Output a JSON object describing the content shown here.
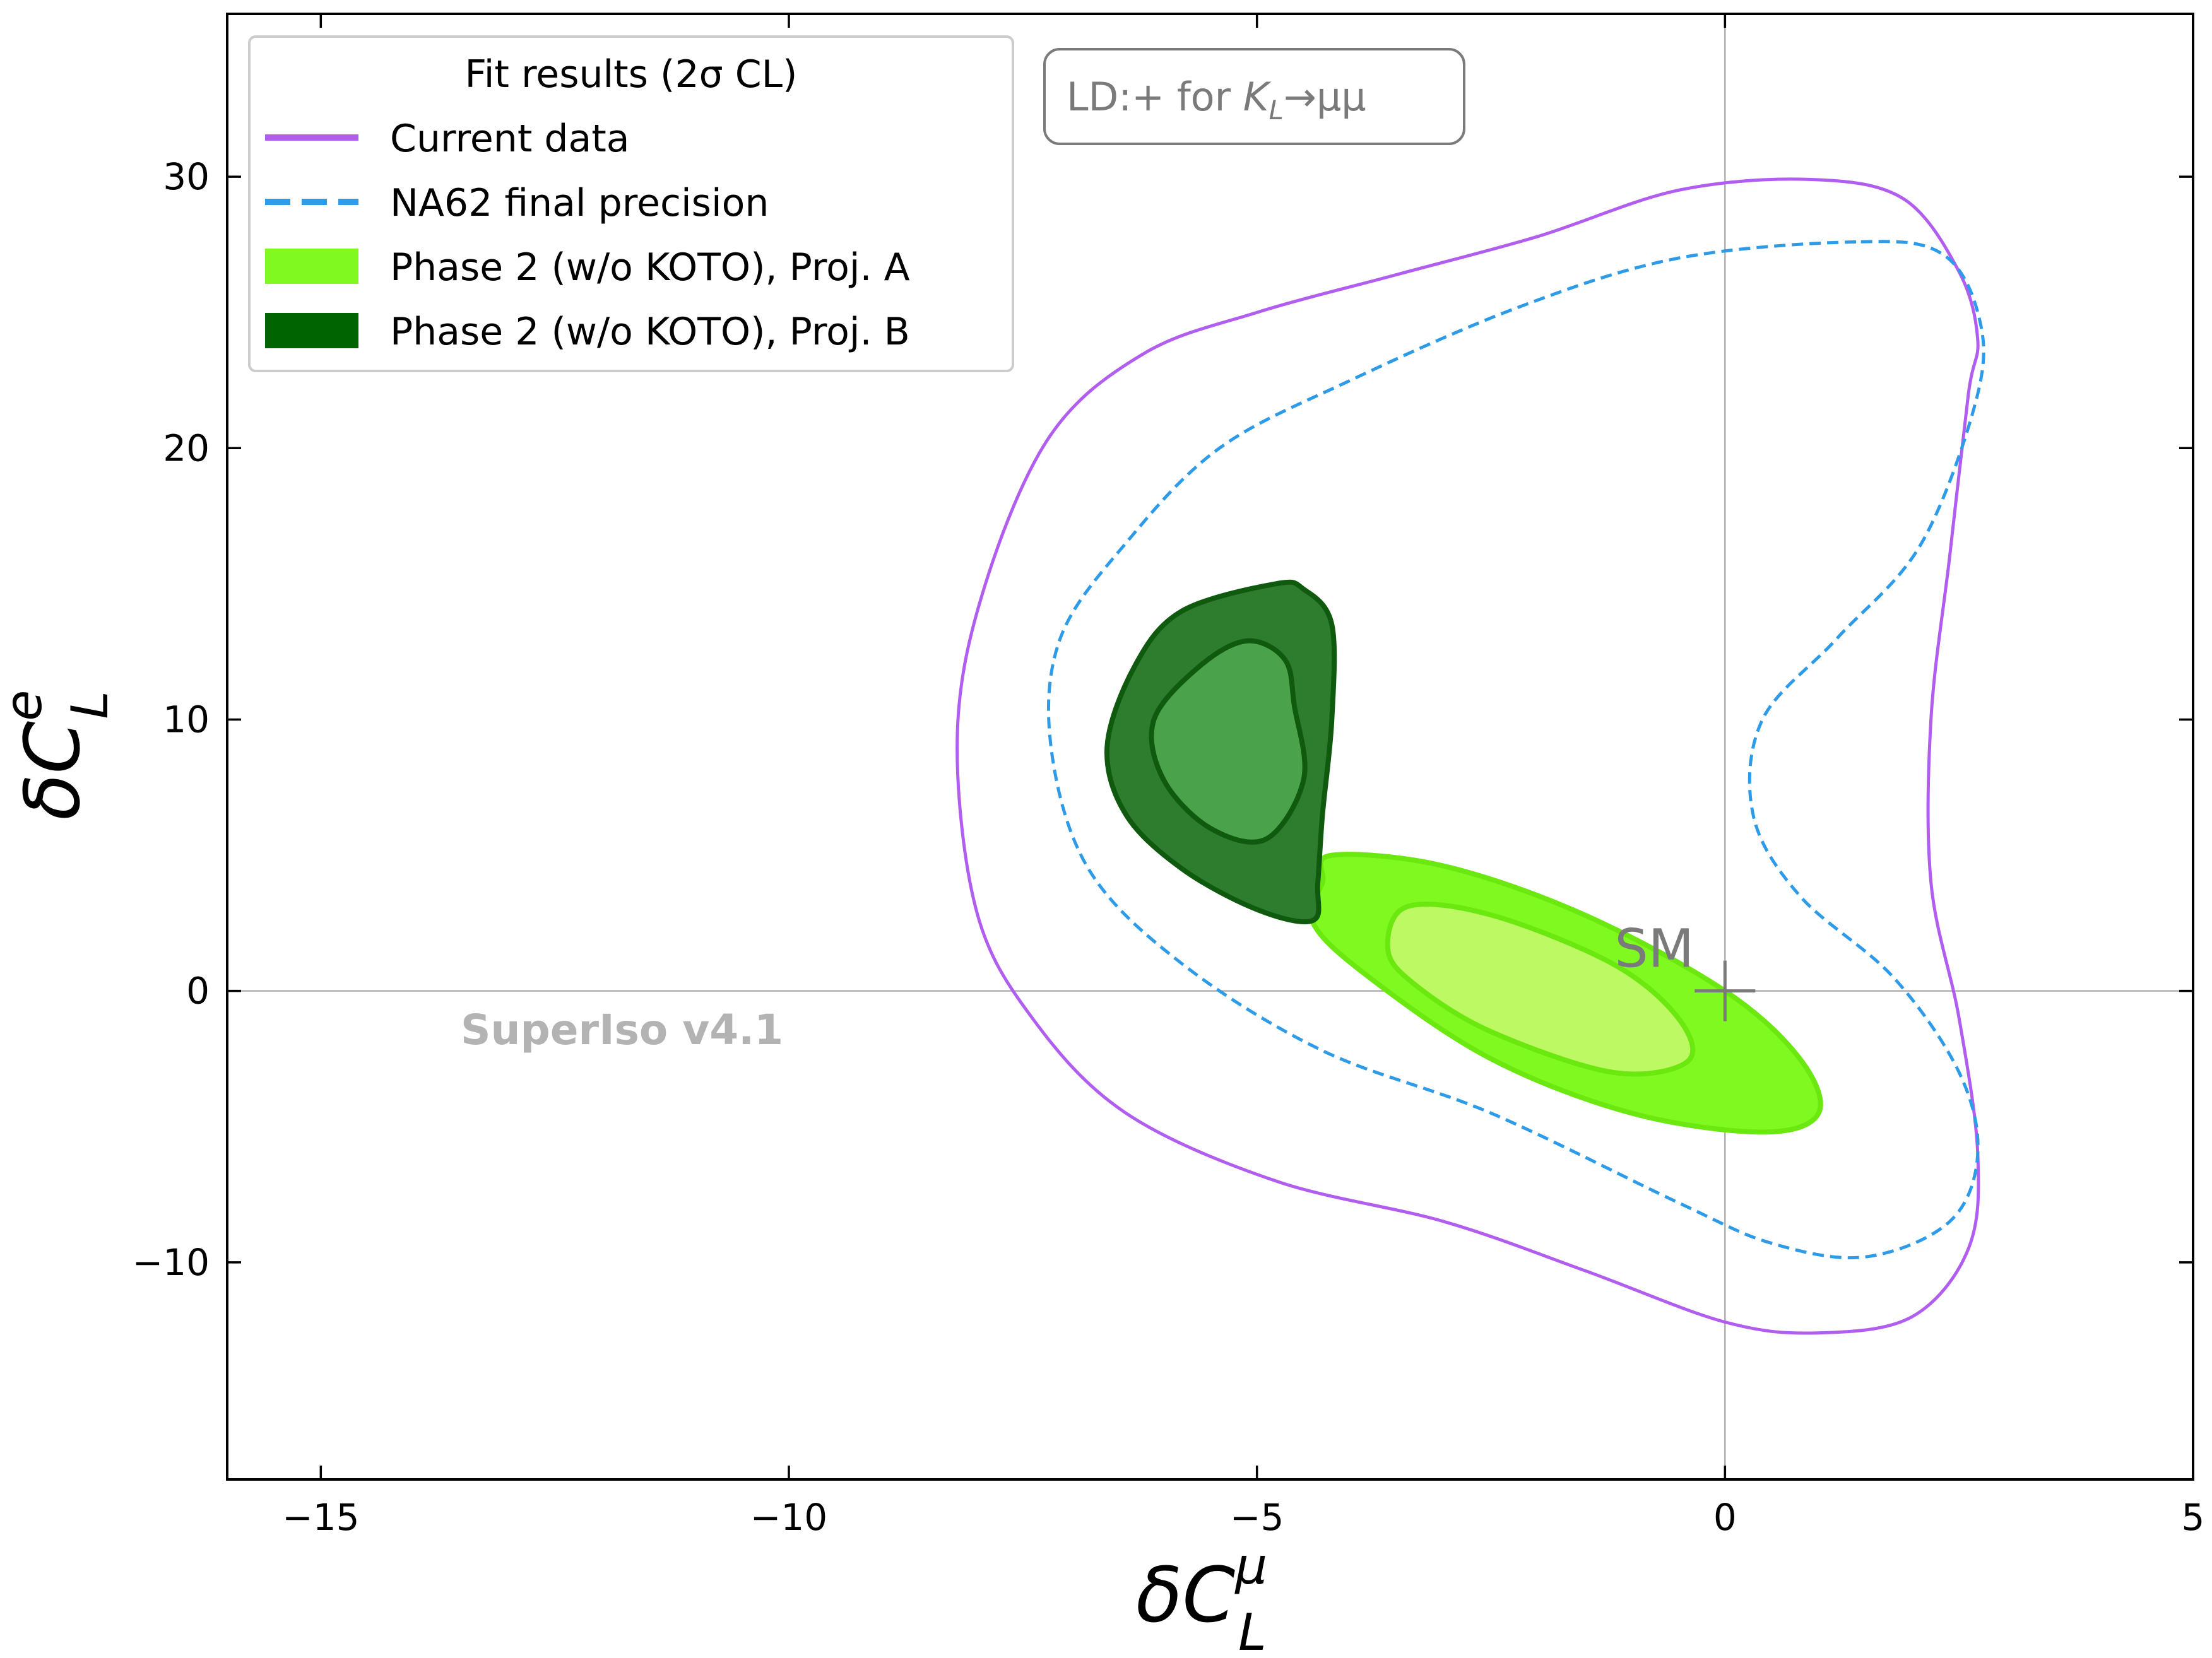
{
  "chart_data": {
    "type": "contour",
    "xlabel": "δC",
    "xlabel_sub": "L",
    "xlabel_sup": "μ",
    "ylabel": "δC",
    "ylabel_sub": "L",
    "ylabel_sup": "e",
    "xlim": [
      -16,
      5
    ],
    "ylim": [
      -18,
      36
    ],
    "xticks": [
      -15,
      -10,
      -5,
      0,
      5
    ],
    "yticks": [
      -10,
      0,
      10,
      20,
      30
    ],
    "xtick_labels": [
      "−15",
      "−10",
      "−5",
      "0",
      "5"
    ],
    "ytick_labels": [
      "−10",
      "0",
      "10",
      "20",
      "30"
    ],
    "grid": false,
    "legend": {
      "placement": "top-left",
      "title": "Fit results (2σ CL)",
      "entries": [
        {
          "label": "Current data",
          "style": "solid-line",
          "color": "#b15ef0"
        },
        {
          "label": "NA62 final precision",
          "style": "dashed-line",
          "color": "#2e9be8"
        },
        {
          "label": "Phase 2 (w/o KOTO), Proj. A",
          "style": "filled",
          "color": "#7ff91f"
        },
        {
          "label": "Phase 2 (w/o KOTO), Proj. B",
          "style": "filled",
          "color": "#006400"
        }
      ]
    },
    "annotation_box": {
      "text_prefix": "LD:+ for ",
      "symbol": "K",
      "symbol_sub": "L",
      "text_suffix": "→μμ"
    },
    "sm_point": {
      "label": "SM",
      "x": 0,
      "y": 0
    },
    "watermark": "SuperIso v4.1",
    "series": [
      {
        "name": "Current data",
        "style": "solid",
        "color": "#b15ef0",
        "points": [
          [
            0.9,
            29.9
          ],
          [
            -0.5,
            29.5
          ],
          [
            -2,
            27.8
          ],
          [
            -3.5,
            26.4
          ],
          [
            -5,
            25
          ],
          [
            -6.2,
            23.5
          ],
          [
            -7.2,
            20.5
          ],
          [
            -7.9,
            15
          ],
          [
            -8.2,
            9.5
          ],
          [
            -8,
            3
          ],
          [
            -7.4,
            -1
          ],
          [
            -6.4,
            -4.5
          ],
          [
            -4.8,
            -7
          ],
          [
            -3,
            -8.5
          ],
          [
            -1.5,
            -10.3
          ],
          [
            0,
            -12.2
          ],
          [
            1,
            -12.6
          ],
          [
            2,
            -12
          ],
          [
            2.6,
            -9.5
          ],
          [
            2.7,
            -6
          ],
          [
            2.5,
            -1
          ],
          [
            2.2,
            4
          ],
          [
            2.2,
            10
          ],
          [
            2.4,
            16
          ],
          [
            2.6,
            22
          ],
          [
            2.7,
            24
          ],
          [
            2.5,
            26.5
          ],
          [
            1.9,
            29.2
          ],
          [
            0.9,
            29.9
          ]
        ]
      },
      {
        "name": "NA62 final precision",
        "style": "dashed",
        "color": "#2e9be8",
        "points": [
          [
            1.4,
            27.6
          ],
          [
            -0.5,
            27
          ],
          [
            -2.2,
            25.2
          ],
          [
            -4,
            22.5
          ],
          [
            -5.4,
            20
          ],
          [
            -6.4,
            16.5
          ],
          [
            -7.1,
            13
          ],
          [
            -7.2,
            9
          ],
          [
            -6.8,
            4.5
          ],
          [
            -5.8,
            1
          ],
          [
            -4.3,
            -2.2
          ],
          [
            -2.5,
            -4.5
          ],
          [
            -0.5,
            -7.8
          ],
          [
            0.5,
            -9.3
          ],
          [
            1.5,
            -9.8
          ],
          [
            2.4,
            -8.5
          ],
          [
            2.7,
            -6
          ],
          [
            2.5,
            -3
          ],
          [
            1.8,
            0.5
          ],
          [
            0.8,
            3.5
          ],
          [
            0.3,
            6.5
          ],
          [
            0.4,
            10
          ],
          [
            1.2,
            13
          ],
          [
            2.1,
            16.5
          ],
          [
            2.7,
            22
          ],
          [
            2.7,
            25
          ],
          [
            2.3,
            27.2
          ],
          [
            1.4,
            27.6
          ]
        ]
      },
      {
        "name": "Phase 2 (w/o KOTO), Proj. A",
        "style": "filled",
        "color": "#7ff91f",
        "points": [
          [
            -4.2,
            5
          ],
          [
            -3,
            4.6
          ],
          [
            -1.5,
            2.8
          ],
          [
            0,
            0
          ],
          [
            0.8,
            -2.5
          ],
          [
            1,
            -4.5
          ],
          [
            0.4,
            -5.2
          ],
          [
            -1,
            -4.5
          ],
          [
            -2.5,
            -2.5
          ],
          [
            -3.8,
            0.5
          ],
          [
            -4.4,
            2.5
          ],
          [
            -4.3,
            4
          ],
          [
            -4.2,
            5
          ]
        ]
      },
      {
        "name": "Phase 2 (w/o KOTO), Proj. A — inner",
        "style": "filled",
        "color": "#bdf962",
        "points": [
          [
            -3.4,
            3.1
          ],
          [
            -2.5,
            2.8
          ],
          [
            -1.2,
            1
          ],
          [
            -0.5,
            -1
          ],
          [
            -0.4,
            -2.6
          ],
          [
            -1.2,
            -3
          ],
          [
            -2.5,
            -1.5
          ],
          [
            -3.3,
            0.2
          ],
          [
            -3.6,
            1.5
          ],
          [
            -3.4,
            3.1
          ]
        ]
      },
      {
        "name": "Phase 2 (w/o KOTO), Proj. B",
        "style": "filled",
        "color": "#2e7d2e",
        "points": [
          [
            -4.8,
            15
          ],
          [
            -5.8,
            14
          ],
          [
            -6.3,
            12
          ],
          [
            -6.6,
            9
          ],
          [
            -6.4,
            6.5
          ],
          [
            -5.8,
            4.5
          ],
          [
            -5,
            3
          ],
          [
            -4.4,
            2.6
          ],
          [
            -4.35,
            4
          ],
          [
            -4.3,
            6.5
          ],
          [
            -4.2,
            10
          ],
          [
            -4.2,
            13.5
          ],
          [
            -4.5,
            14.8
          ],
          [
            -4.8,
            15
          ]
        ]
      },
      {
        "name": "Phase 2 (w/o KOTO), Proj. B — inner",
        "style": "filled",
        "color": "#4aa34a",
        "points": [
          [
            -5.1,
            12.9
          ],
          [
            -5.6,
            12
          ],
          [
            -6.1,
            10
          ],
          [
            -6,
            7.8
          ],
          [
            -5.5,
            6
          ],
          [
            -4.9,
            5.6
          ],
          [
            -4.5,
            7.8
          ],
          [
            -4.6,
            10.5
          ],
          [
            -4.7,
            12.2
          ],
          [
            -5.1,
            12.9
          ]
        ]
      }
    ]
  }
}
